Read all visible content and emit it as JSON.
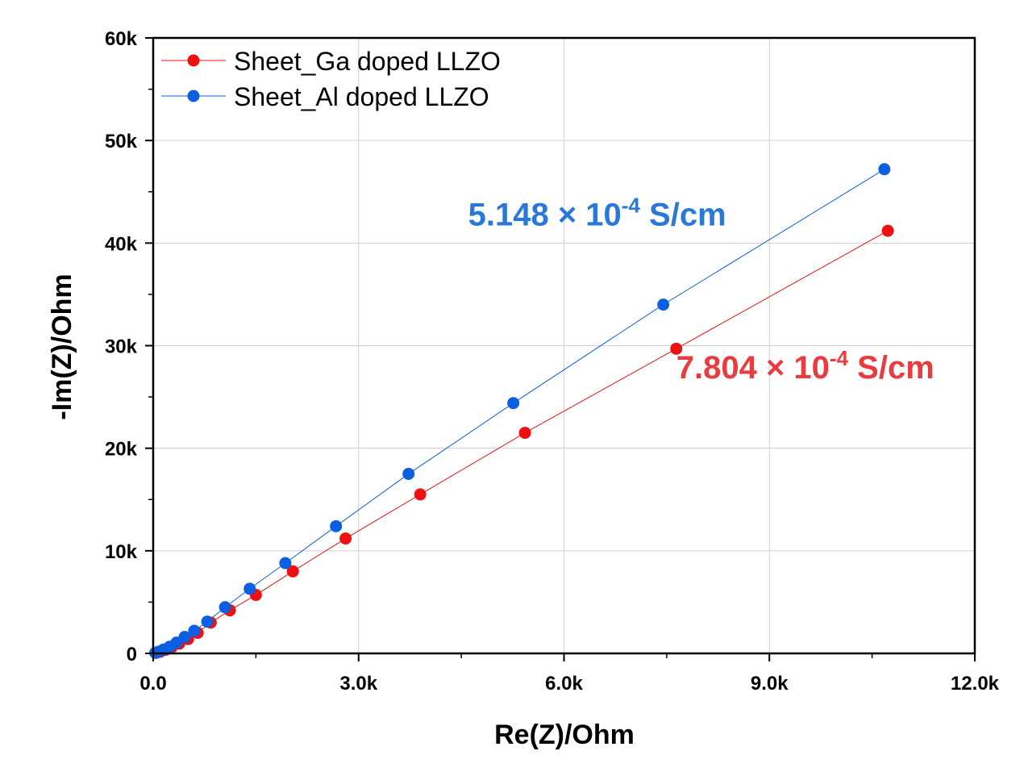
{
  "chart_data": {
    "type": "scatter",
    "xlabel": "Re(Z)/Ohm",
    "ylabel": "-Im(Z)/Ohm",
    "xlim": [
      0,
      12000
    ],
    "ylim": [
      0,
      60000
    ],
    "x_ticks": [
      0,
      3000,
      6000,
      9000,
      12000
    ],
    "x_tick_labels": [
      "0.0",
      "3.0k",
      "6.0k",
      "9.0k",
      "12.0k"
    ],
    "y_ticks": [
      0,
      10000,
      20000,
      30000,
      40000,
      50000,
      60000
    ],
    "y_tick_labels": [
      "0",
      "10k",
      "20k",
      "30k",
      "40k",
      "50k",
      "60k"
    ],
    "grid": true,
    "legend_position": "top-left",
    "series": [
      {
        "name": "Sheet_Ga doped LLZO",
        "color": "#ee1111",
        "x": [
          40,
          100,
          180,
          270,
          380,
          510,
          650,
          840,
          1120,
          1500,
          2040,
          2810,
          3900,
          5430,
          7640,
          10730
        ],
        "y": [
          50,
          150,
          350,
          600,
          950,
          1400,
          2000,
          3000,
          4200,
          5700,
          8000,
          11200,
          15500,
          21500,
          29700,
          41200
        ]
      },
      {
        "name": "Sheet_Al doped LLZO",
        "color": "#0b5fe0",
        "x": [
          30,
          80,
          150,
          240,
          340,
          460,
          600,
          790,
          1050,
          1410,
          1930,
          2670,
          3730,
          5260,
          7450,
          10680
        ],
        "y": [
          50,
          170,
          370,
          650,
          1050,
          1600,
          2200,
          3100,
          4500,
          6300,
          8800,
          12400,
          17500,
          24400,
          34000,
          47200
        ]
      }
    ],
    "annotations": [
      {
        "base": "5.148 × 10",
        "exp": "-4",
        "unit": " S/cm",
        "color": "#2a78d8",
        "x": 4600,
        "y": 41700
      },
      {
        "base": "7.804 × 10",
        "exp": "-4",
        "unit": " S/cm",
        "color": "#e83c40",
        "x": 7640,
        "y": 26800
      }
    ]
  }
}
